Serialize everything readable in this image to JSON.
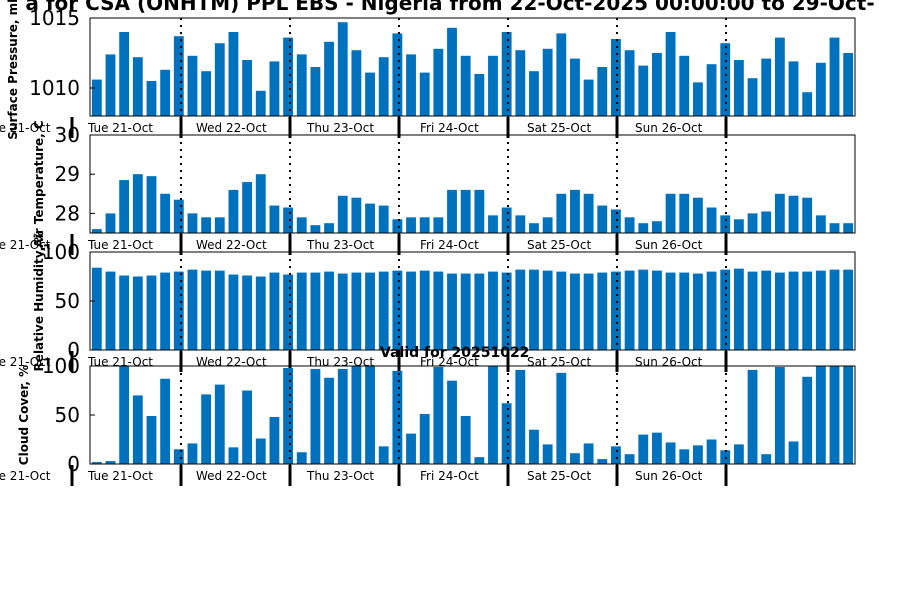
{
  "title": "a for CSA (ONHTM) PPL EBS - Nigeria from 22-Oct-2025 00:00:00 to 29-Oct-",
  "subtitle": "Valid for 20251022",
  "colors": {
    "bar": "#0072bd",
    "axis": "#000000",
    "text": "#000000"
  },
  "chart_data": [
    {
      "type": "bar",
      "ylabel": "Surface Pressure, mb",
      "ylim": [
        1008,
        1015
      ],
      "yticks": [
        1010,
        1015
      ],
      "values": [
        1010.6,
        1012.4,
        1014.0,
        1012.2,
        1010.5,
        1011.3,
        1013.7,
        1012.3,
        1011.2,
        1013.2,
        1014.0,
        1012.0,
        1009.8,
        1011.9,
        1013.6,
        1012.4,
        1011.5,
        1013.3,
        1014.7,
        1012.7,
        1011.1,
        1012.2,
        1013.9,
        1012.4,
        1011.1,
        1012.8,
        1014.3,
        1012.3,
        1011.0,
        1012.3,
        1014.0,
        1012.7,
        1011.2,
        1012.8,
        1013.9,
        1012.1,
        1010.6,
        1011.5,
        1013.5,
        1012.7,
        1011.6,
        1012.5,
        1014.0,
        1012.3,
        1010.4,
        1011.7,
        1013.2,
        1012.0,
        1010.7,
        1012.1,
        1013.6,
        1011.9,
        1009.7,
        1011.8,
        1013.6,
        1012.5
      ]
    },
    {
      "type": "bar",
      "ylabel": "Air Temperature, C",
      "ylim": [
        27.5,
        30
      ],
      "yticks": [
        28,
        29,
        30
      ],
      "values": [
        27.6,
        28.0,
        28.85,
        29.0,
        28.95,
        28.5,
        28.35,
        28.0,
        27.9,
        27.9,
        28.6,
        28.8,
        29.0,
        28.2,
        28.15,
        27.9,
        27.7,
        27.75,
        28.45,
        28.4,
        28.25,
        28.2,
        27.85,
        27.9,
        27.9,
        27.9,
        28.6,
        28.6,
        28.6,
        27.95,
        28.15,
        27.95,
        27.75,
        27.9,
        28.5,
        28.6,
        28.5,
        28.2,
        28.1,
        27.9,
        27.75,
        27.8,
        28.5,
        28.5,
        28.4,
        28.15,
        27.95,
        27.85,
        28.0,
        28.05,
        28.5,
        28.45,
        28.4,
        27.95,
        27.75,
        27.75
      ]
    },
    {
      "type": "bar",
      "ylabel": "Relative Humidity, %",
      "ylim": [
        0,
        100
      ],
      "yticks": [
        0,
        50,
        100
      ],
      "values": [
        84,
        80,
        76,
        75,
        76,
        79,
        80,
        82,
        81,
        81,
        77,
        76,
        75,
        79,
        77,
        79,
        79,
        80,
        78,
        79,
        79,
        80,
        81,
        80,
        81,
        80,
        78,
        78,
        78,
        80,
        79,
        82,
        82,
        81,
        80,
        78,
        78,
        79,
        80,
        81,
        82,
        81,
        79,
        79,
        78,
        80,
        82,
        83,
        80,
        81,
        79,
        80,
        80,
        81,
        82,
        82
      ]
    },
    {
      "type": "bar",
      "ylabel": "Cloud Cover, %",
      "ylim": [
        0,
        100
      ],
      "yticks": [
        0,
        50,
        100
      ],
      "values": [
        2,
        3,
        100,
        70,
        49,
        87,
        15,
        21,
        71,
        81,
        17,
        75,
        26,
        48,
        98,
        12,
        97,
        88,
        97,
        100,
        100,
        18,
        95,
        31,
        51,
        99,
        85,
        49,
        7,
        100,
        62,
        96,
        35,
        20,
        93,
        11,
        21,
        5,
        18,
        10,
        30,
        32,
        22,
        15,
        19,
        25,
        14,
        20,
        96,
        10,
        99,
        23,
        89,
        100,
        100,
        100
      ]
    }
  ],
  "day_labels": [
    "Tue 21-Oct",
    "Tue 21-Oct",
    "Wed 22-Oct",
    "Thu 23-Oct",
    "Fri 24-Oct",
    "Sat 25-Oct",
    "Sun 26-Oct"
  ]
}
